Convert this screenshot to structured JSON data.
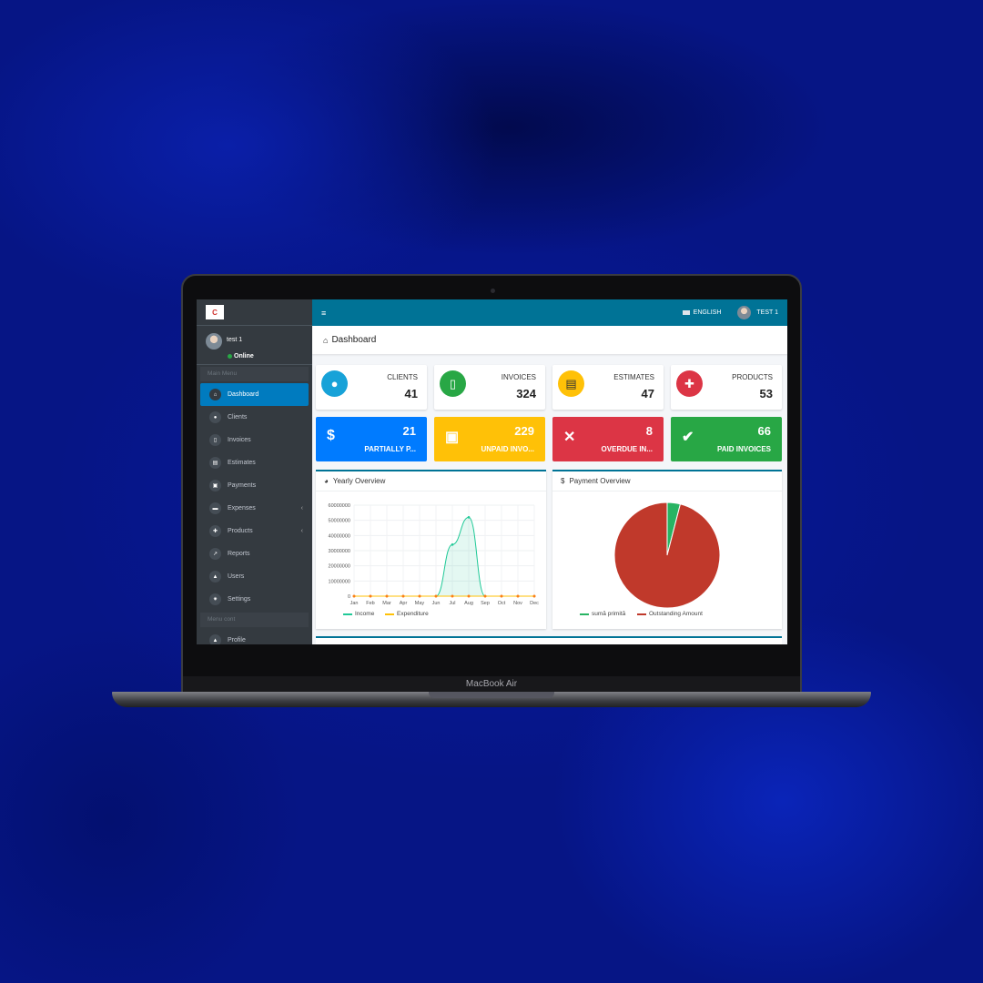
{
  "device": {
    "label": "MacBook Air"
  },
  "sidebar": {
    "logo_text": "C",
    "user": {
      "name": "test 1",
      "status": "Online"
    },
    "main_menu_header": "Main Menu",
    "items": [
      {
        "label": "Dashboard",
        "icon": "home-icon",
        "active": true
      },
      {
        "label": "Clients",
        "icon": "users-icon"
      },
      {
        "label": "Invoices",
        "icon": "file-icon"
      },
      {
        "label": "Estimates",
        "icon": "list-icon"
      },
      {
        "label": "Payments",
        "icon": "money-icon"
      },
      {
        "label": "Expenses",
        "icon": "credit-card-icon",
        "has_submenu": true
      },
      {
        "label": "Products",
        "icon": "puzzle-icon",
        "has_submenu": true
      },
      {
        "label": "Reports",
        "icon": "chart-icon"
      },
      {
        "label": "Users",
        "icon": "user-icon"
      },
      {
        "label": "Settings",
        "icon": "cogs-icon"
      }
    ],
    "secondary_header": "Menu cont",
    "secondary_items": [
      {
        "label": "Profile",
        "icon": "user-icon"
      }
    ]
  },
  "topbar": {
    "menu_icon": "hamburger-icon",
    "language": "ENGLISH",
    "user": "TEST 1"
  },
  "page": {
    "title": "Dashboard"
  },
  "stats": [
    {
      "label": "CLIENTS",
      "value": "41",
      "icon": "users-icon",
      "color": "#17a2d8"
    },
    {
      "label": "INVOICES",
      "value": "324",
      "icon": "pdf-icon",
      "color": "#28a745"
    },
    {
      "label": "ESTIMATES",
      "value": "47",
      "icon": "list-icon",
      "color": "#ffc107"
    },
    {
      "label": "PRODUCTS",
      "value": "53",
      "icon": "puzzle-icon",
      "color": "#dc3545"
    }
  ],
  "invoice_boxes": [
    {
      "label": "PARTIALLY P...",
      "value": "21",
      "icon": "dollar-icon",
      "color": "#007bff"
    },
    {
      "label": "UNPAID INVO...",
      "value": "229",
      "icon": "money-icon",
      "color": "#ffc107"
    },
    {
      "label": "OVERDUE IN...",
      "value": "8",
      "icon": "times-icon",
      "color": "#dc3545"
    },
    {
      "label": "PAID INVOICES",
      "value": "66",
      "icon": "check-icon",
      "color": "#28a745"
    }
  ],
  "yearly": {
    "title": "Yearly Overview",
    "icon": "pie-icon"
  },
  "payment": {
    "title": "Payment Overview",
    "icon": "dollar-icon"
  },
  "chart_data": [
    {
      "type": "area",
      "title": "Yearly Overview",
      "categories": [
        "Jan",
        "Feb",
        "Mar",
        "Apr",
        "May",
        "Jun",
        "Jul",
        "Aug",
        "Sep",
        "Oct",
        "Nov",
        "Dec"
      ],
      "ylim": [
        0,
        60000000
      ],
      "yticks": [
        "60000000",
        "50000000",
        "40000000",
        "30000000",
        "20000000",
        "10000000",
        "0"
      ],
      "grid": true,
      "legend": "bottom",
      "series": [
        {
          "name": "Income",
          "color": "#20c997",
          "values": [
            0,
            0,
            0,
            0,
            0,
            0,
            34000000,
            52000000,
            0,
            0,
            0,
            0
          ]
        },
        {
          "name": "Expenditure",
          "color": "#fd7e14",
          "values": [
            0,
            0,
            0,
            0,
            0,
            0,
            0,
            0,
            0,
            0,
            0,
            0
          ]
        }
      ]
    },
    {
      "type": "pie",
      "title": "Payment Overview",
      "legend": "bottom",
      "labels": [
        "sumă primită",
        "Outstanding Amount"
      ],
      "values": [
        4,
        96
      ],
      "colors": [
        "#28b463",
        "#c0392b"
      ]
    }
  ]
}
